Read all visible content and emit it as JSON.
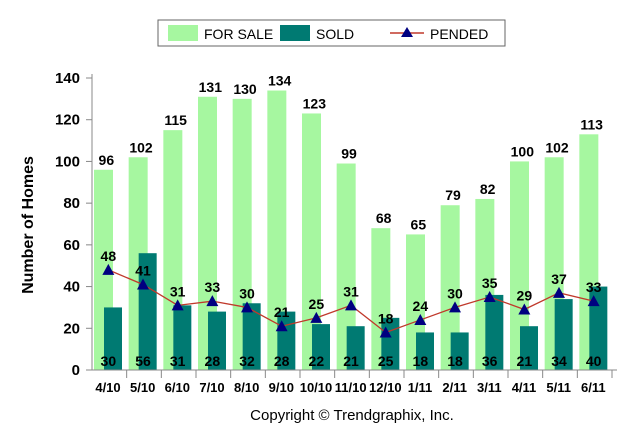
{
  "chart_data": {
    "type": "bar",
    "categories": [
      "4/10",
      "5/10",
      "6/10",
      "7/10",
      "8/10",
      "9/10",
      "10/10",
      "11/10",
      "12/10",
      "1/11",
      "2/11",
      "3/11",
      "4/11",
      "5/11",
      "6/11"
    ],
    "series": [
      {
        "name": "FOR SALE",
        "type": "bar",
        "color": "#a6f7a0",
        "values": [
          96,
          102,
          115,
          131,
          130,
          134,
          123,
          99,
          68,
          65,
          79,
          82,
          100,
          102,
          113
        ]
      },
      {
        "name": "SOLD",
        "type": "bar",
        "color": "#007a72",
        "values": [
          30,
          56,
          31,
          28,
          32,
          28,
          22,
          21,
          25,
          18,
          18,
          36,
          21,
          34,
          40
        ]
      },
      {
        "name": "PENDED",
        "type": "line",
        "color": "#c0392b",
        "marker_color": "#000080",
        "values": [
          48,
          41,
          31,
          33,
          30,
          21,
          25,
          31,
          18,
          24,
          30,
          35,
          29,
          37,
          33
        ]
      }
    ],
    "ylabel": "Number of Homes",
    "xlabel": "",
    "ylim": [
      0,
      140
    ],
    "yticks": [
      0,
      20,
      40,
      60,
      80,
      100,
      120,
      140
    ],
    "legend": "top-center",
    "footer": "Copyright © Trendgraphix, Inc."
  }
}
